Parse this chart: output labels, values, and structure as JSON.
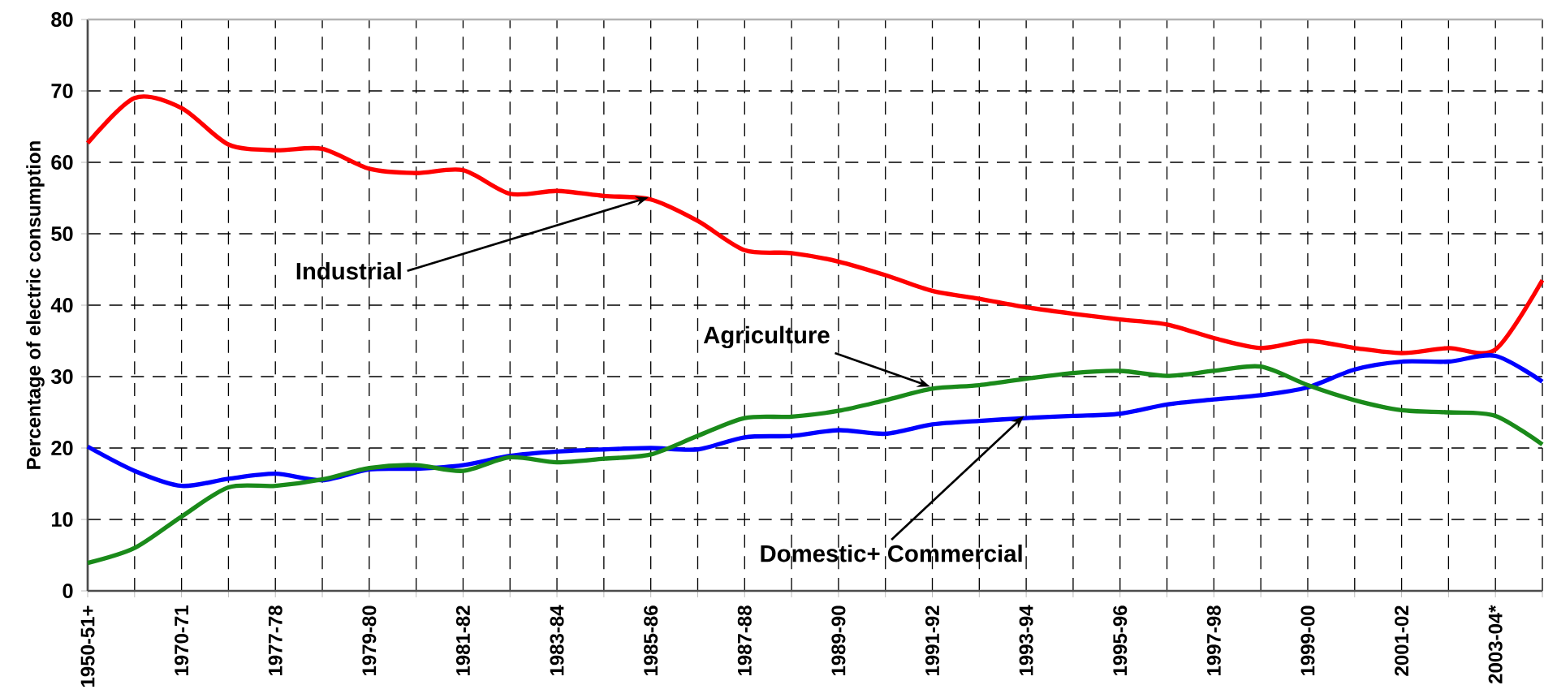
{
  "chart_data": {
    "type": "line",
    "ylabel": "Percentage of electric consumption",
    "categories": [
      "1950-51+",
      null,
      "1970-71",
      null,
      "1977-78",
      null,
      "1979-80",
      null,
      "1981-82",
      null,
      "1983-84",
      null,
      "1985-86",
      null,
      "1987-88",
      null,
      "1989-90",
      null,
      "1991-92",
      null,
      "1993-94",
      null,
      "1995-96",
      null,
      "1997-98",
      null,
      "1999-00",
      null,
      "2001-02",
      null,
      "2003-04*",
      null
    ],
    "series": [
      {
        "color": "#ff0000",
        "values": [
          62.7,
          69,
          67.6,
          62.5,
          61.7,
          61.9,
          59.1,
          58.5,
          58.9,
          55.6,
          56,
          55.3,
          54.8,
          51.8,
          47.7,
          47.3,
          46.1,
          44.2,
          42,
          40.9,
          39.7,
          38.8,
          38,
          37.3,
          35.4,
          34,
          35,
          34,
          33.3,
          34,
          33.8,
          43.5
        ]
      },
      {
        "color": "#0000ff",
        "values": [
          20.2,
          16.8,
          14.7,
          15.7,
          16.4,
          15.5,
          17,
          17.1,
          17.6,
          18.9,
          19.5,
          19.8,
          20,
          19.8,
          21.5,
          21.7,
          22.5,
          22,
          23.3,
          23.8,
          24.2,
          24.5,
          24.8,
          26.1,
          26.8,
          27.4,
          28.5,
          31,
          32.1,
          32.1,
          32.9,
          29.3
        ]
      },
      {
        "color": "#1a8a1a",
        "values": [
          3.9,
          6,
          10.4,
          14.5,
          14.7,
          15.6,
          17.2,
          17.6,
          16.8,
          18.7,
          18,
          18.5,
          19.1,
          21.7,
          24.2,
          24.4,
          25.2,
          26.7,
          28.3,
          28.8,
          29.7,
          30.5,
          30.8,
          30.1,
          30.8,
          31.4,
          28.8,
          26.7,
          25.3,
          25,
          24.5,
          20.5
        ]
      }
    ],
    "ylim": [
      0,
      80
    ],
    "yticks": [
      0,
      10,
      20,
      30,
      40,
      50,
      60,
      70,
      80
    ],
    "grid": true,
    "marker": "none",
    "line_style": "solid",
    "annotations": [
      {
        "text": "Industrial",
        "x": "1985-86",
        "y": 54.8
      },
      {
        "text": "Agriculture",
        "x": "1991-92",
        "y": 28.3
      },
      {
        "text": "Domestic+ Commercial",
        "x": "1993-94",
        "y": 24.2
      }
    ]
  }
}
